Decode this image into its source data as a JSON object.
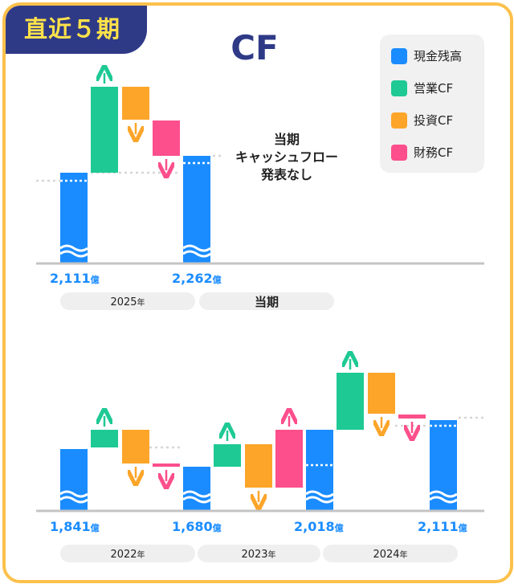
{
  "header": {
    "badge": "直近５期",
    "title": "CF"
  },
  "legend": [
    {
      "label": "現金残高",
      "color": "#1a8cff",
      "icon": "square-swatch"
    },
    {
      "label": "営業CF",
      "color": "#1ec994",
      "icon": "square-swatch"
    },
    {
      "label": "投資CF",
      "color": "#fca529",
      "icon": "square-swatch"
    },
    {
      "label": "財務CF",
      "color": "#fc4f8b",
      "icon": "square-swatch"
    }
  ],
  "units": {
    "oku": "億",
    "year": "年"
  },
  "chart_data": [
    {
      "type": "waterfall",
      "title": "CF",
      "periods": [
        {
          "label": "2025",
          "suffix": "年",
          "start_cash": "2,111",
          "flows": [
            "operating",
            "investing",
            "financing"
          ]
        },
        {
          "label": "当期",
          "suffix": "",
          "start_cash": "2,262",
          "flows": [],
          "note": [
            "当期",
            "キャッシュフロー",
            "発表なし"
          ]
        }
      ],
      "cash_values": [
        2111,
        2262
      ],
      "cash_labels": [
        "2,111",
        "2,262"
      ]
    },
    {
      "type": "waterfall",
      "periods": [
        {
          "label": "2022",
          "suffix": "年",
          "start_cash": "1,841",
          "flows": [
            "operating",
            "investing",
            "financing"
          ]
        },
        {
          "label": "2023",
          "suffix": "年",
          "start_cash": "1,680",
          "flows": [
            "operating",
            "investing",
            "financing"
          ]
        },
        {
          "label": "2024",
          "suffix": "年",
          "start_cash": "2,018",
          "flows": [
            "operating",
            "investing",
            "financing"
          ]
        }
      ],
      "end_cash": "2,111",
      "cash_values": [
        1841,
        1680,
        2018,
        2111
      ],
      "cash_labels": [
        "1,841",
        "1,680",
        "2,018",
        "2,111"
      ]
    }
  ]
}
